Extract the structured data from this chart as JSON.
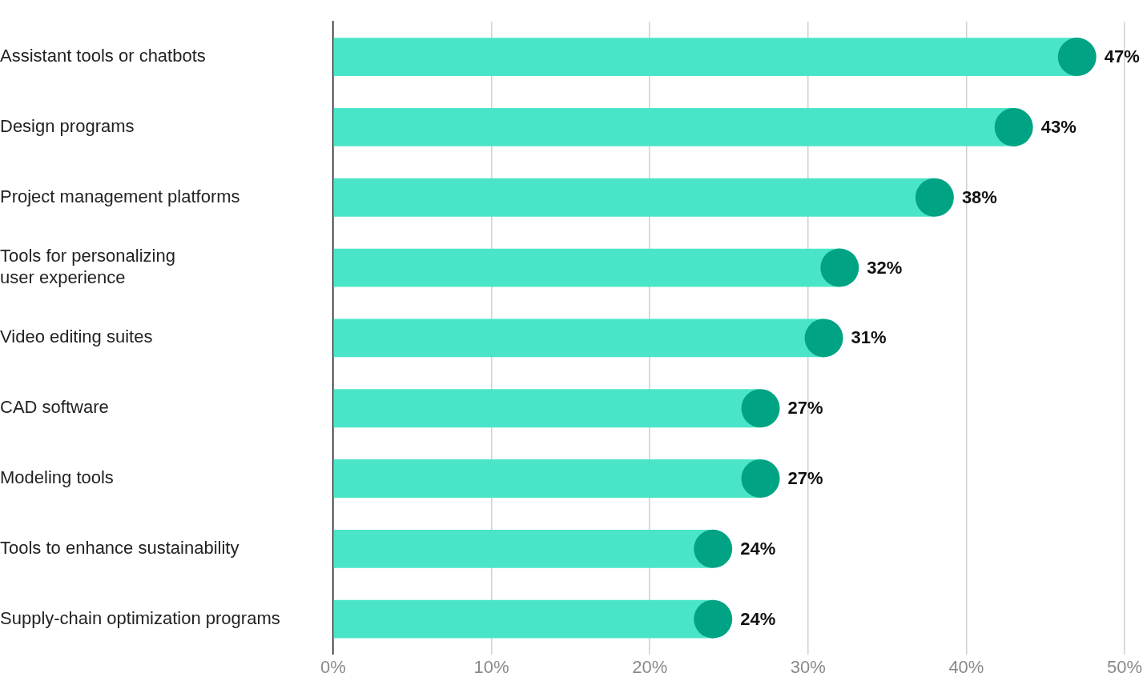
{
  "chart_data": {
    "type": "bar",
    "orientation": "horizontal",
    "categories": [
      "Assistant tools or chatbots",
      "Design programs",
      "Project management platforms",
      "Tools for personalizing\nuser experience",
      "Video editing suites",
      "CAD software",
      "Modeling tools",
      "Tools to enhance sustainability",
      "Supply-chain optimization programs"
    ],
    "series": [
      {
        "color": "#4ae5c9",
        "values": [
          47,
          43,
          38,
          32,
          31,
          27,
          27,
          24,
          24
        ]
      },
      {
        "type": "scatter",
        "color": "#00a383",
        "marker": "circle",
        "values": [
          47,
          43,
          38,
          32,
          31,
          27,
          27,
          24,
          24
        ],
        "value_labels": [
          "47%",
          "43%",
          "38%",
          "32%",
          "31%",
          "27%",
          "27%",
          "24%",
          "24%"
        ]
      }
    ],
    "xlim": [
      0,
      50
    ],
    "xticks": [
      {
        "value": 0,
        "label": "0%"
      },
      {
        "value": 10,
        "label": "10%"
      },
      {
        "value": 20,
        "label": "20%"
      },
      {
        "value": 30,
        "label": "30%"
      },
      {
        "value": 40,
        "label": "40%"
      },
      {
        "value": 50,
        "label": "50%"
      }
    ],
    "grid": "x",
    "legend": false
  }
}
